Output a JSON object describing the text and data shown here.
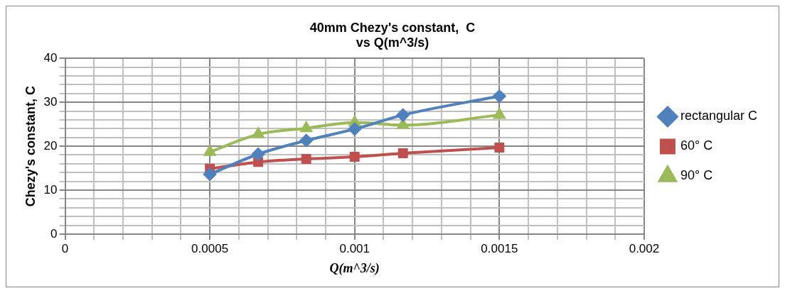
{
  "chart_data": {
    "type": "line",
    "title": "40mm Chezy's constant,  C\nvs Q(m^3/s)",
    "xlabel": "Q(m^3/s)",
    "ylabel": "Chezy's constant, C",
    "x": [
      0.0005,
      0.000667,
      0.000833,
      0.001,
      0.001167,
      0.0015
    ],
    "series": [
      {
        "name": "rectangular C",
        "color": "#4f81bd",
        "marker": "diamond",
        "values": [
          13.6,
          18.2,
          21.3,
          23.9,
          27.1,
          31.4
        ]
      },
      {
        "name": "60° C",
        "color": "#c0504d",
        "marker": "square",
        "values": [
          14.9,
          16.4,
          17.1,
          17.6,
          18.4,
          19.7
        ]
      },
      {
        "name": "90° C",
        "color": "#9bbb59",
        "marker": "triangle",
        "values": [
          18.7,
          22.7,
          24.1,
          25.4,
          24.8,
          27.1
        ]
      }
    ],
    "xlim": [
      0,
      0.002
    ],
    "ylim": [
      0,
      40
    ],
    "xticks": [
      0,
      {
        "value": 0.0001,
        "label": null
      },
      {
        "value": 0.0002,
        "label": null
      },
      {
        "value": 0.0003,
        "label": null
      },
      {
        "value": 0.0004,
        "label": null
      },
      0.0005,
      {
        "value": 0.0006,
        "label": null
      },
      {
        "value": 0.0007,
        "label": null
      },
      {
        "value": 0.0008,
        "label": null
      },
      {
        "value": 0.0009,
        "label": null
      },
      0.001,
      {
        "value": 0.0011,
        "label": null
      },
      {
        "value": 0.0012,
        "label": null
      },
      {
        "value": 0.0013,
        "label": null
      },
      {
        "value": 0.0014,
        "label": null
      },
      0.0015,
      {
        "value": 0.0016,
        "label": null
      },
      {
        "value": 0.0017,
        "label": null
      },
      {
        "value": 0.0018,
        "label": null
      },
      {
        "value": 0.0019,
        "label": null
      },
      0.002
    ],
    "yticks": [
      0,
      {
        "value": 2,
        "label": null
      },
      {
        "value": 4,
        "label": null
      },
      {
        "value": 6,
        "label": null
      },
      {
        "value": 8,
        "label": null
      },
      10,
      {
        "value": 12,
        "label": null
      },
      {
        "value": 14,
        "label": null
      },
      {
        "value": 16,
        "label": null
      },
      {
        "value": 18,
        "label": null
      },
      20,
      {
        "value": 22,
        "label": null
      },
      {
        "value": 24,
        "label": null
      },
      {
        "value": 26,
        "label": null
      },
      {
        "value": 28,
        "label": null
      },
      30,
      {
        "value": 32,
        "label": null
      },
      {
        "value": 34,
        "label": null
      },
      {
        "value": 36,
        "label": null
      },
      {
        "value": 38,
        "label": null
      },
      40
    ],
    "grid": true,
    "legend": "right",
    "line_style": "solid"
  }
}
